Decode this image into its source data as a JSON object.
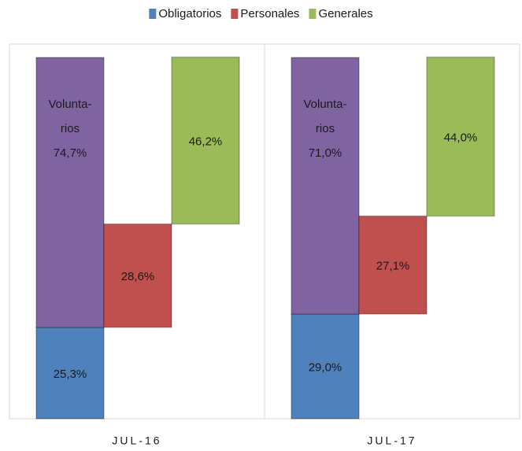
{
  "chart_data": {
    "type": "floating-bar",
    "categories": [
      "JUL-16",
      "JUL-17"
    ],
    "ylim": [
      0,
      100
    ],
    "series": [
      {
        "name": "Obligatorios",
        "color": "#4f81bd",
        "column": 0,
        "stack_on": [],
        "values": [
          25.3,
          29.0
        ],
        "value_labels": [
          "25,3%",
          "29,0%"
        ]
      },
      {
        "color": "#8064a2",
        "column": 0,
        "stack_on": [
          0
        ],
        "in_legend": false,
        "label_lines": [
          "Volunta-",
          "rios"
        ],
        "values": [
          74.7,
          71.0
        ],
        "value_labels": [
          "74,7%",
          "71,0%"
        ]
      },
      {
        "name": "Personales",
        "color": "#c0504d",
        "column": 1,
        "stack_on": [
          0
        ],
        "values": [
          28.6,
          27.1
        ],
        "value_labels": [
          "28,6%",
          "27,1%"
        ]
      },
      {
        "name": "Generales",
        "color": "#9bbb59",
        "column": 2,
        "stack_on": [
          0,
          2
        ],
        "values": [
          46.2,
          44.0
        ],
        "value_labels": [
          "46,2%",
          "44,0%"
        ]
      }
    ]
  }
}
